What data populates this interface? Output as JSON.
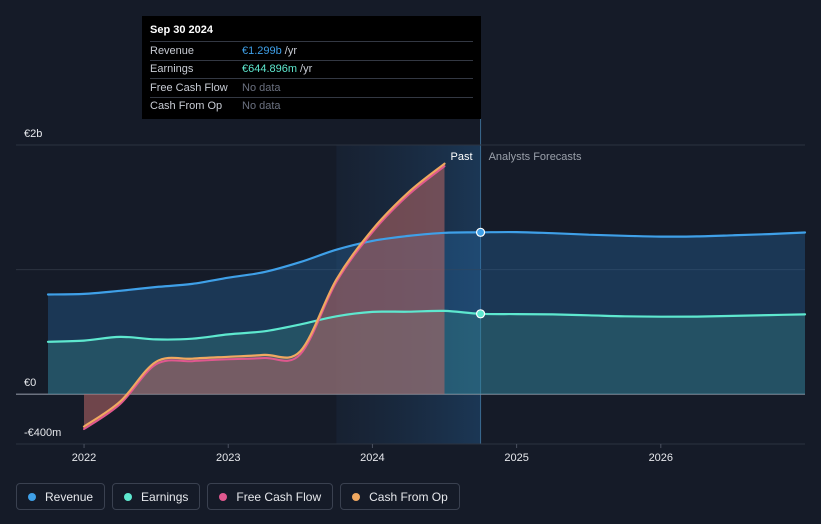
{
  "tooltip": {
    "date": "Sep 30 2024",
    "rows": [
      {
        "label": "Revenue",
        "value": "€1.299b",
        "unit": "/yr",
        "color": "#3fa0e8"
      },
      {
        "label": "Earnings",
        "value": "€644.896m",
        "unit": "/yr",
        "color": "#5ee8cf"
      },
      {
        "label": "Free Cash Flow",
        "value": "No data",
        "unit": "",
        "color": "#6b7180"
      },
      {
        "label": "Cash From Op",
        "value": "No data",
        "unit": "",
        "color": "#6b7180"
      }
    ]
  },
  "chart_data": {
    "type": "area",
    "y_unit": "EUR",
    "ylim": [
      -400000000,
      2000000000
    ],
    "y_tick_labels": [
      {
        "value": 2000000000,
        "label": "€2b"
      },
      {
        "value": 0,
        "label": "€0"
      },
      {
        "value": -400000000,
        "label": "-€400m"
      }
    ],
    "xlim": [
      2021.75,
      2027.0
    ],
    "x_tick_labels": [
      {
        "value": 2022,
        "label": "2022"
      },
      {
        "value": 2023,
        "label": "2023"
      },
      {
        "value": 2024,
        "label": "2024"
      },
      {
        "value": 2025,
        "label": "2025"
      },
      {
        "value": 2026,
        "label": "2026"
      }
    ],
    "divider_x": 2024.75,
    "highlight_x": [
      2023.75,
      2024.75
    ],
    "past_label": "Past",
    "forecast_label": "Analysts Forecasts",
    "grid": true,
    "legend_position": "bottom-left",
    "series": [
      {
        "name": "Revenue",
        "color": "#3fa0e8",
        "points": [
          [
            2021.75,
            800000000
          ],
          [
            2022.0,
            805000000
          ],
          [
            2022.25,
            830000000
          ],
          [
            2022.5,
            860000000
          ],
          [
            2022.75,
            885000000
          ],
          [
            2023.0,
            935000000
          ],
          [
            2023.25,
            980000000
          ],
          [
            2023.5,
            1060000000
          ],
          [
            2023.75,
            1160000000
          ],
          [
            2024.0,
            1230000000
          ],
          [
            2024.25,
            1270000000
          ],
          [
            2024.5,
            1295000000
          ],
          [
            2024.75,
            1299000000
          ],
          [
            2025.0,
            1301000000
          ],
          [
            2025.25,
            1292000000
          ],
          [
            2025.5,
            1280000000
          ],
          [
            2025.75,
            1271000000
          ],
          [
            2026.0,
            1265000000
          ],
          [
            2026.25,
            1266000000
          ],
          [
            2026.5,
            1275000000
          ],
          [
            2026.75,
            1285000000
          ],
          [
            2027.0,
            1298000000
          ]
        ],
        "past_until": 2024.75,
        "marker_x": 2024.75
      },
      {
        "name": "Earnings",
        "color": "#5ee8cf",
        "points": [
          [
            2021.75,
            420000000
          ],
          [
            2022.0,
            430000000
          ],
          [
            2022.25,
            460000000
          ],
          [
            2022.5,
            440000000
          ],
          [
            2022.75,
            445000000
          ],
          [
            2023.0,
            480000000
          ],
          [
            2023.25,
            505000000
          ],
          [
            2023.5,
            560000000
          ],
          [
            2023.75,
            625000000
          ],
          [
            2024.0,
            660000000
          ],
          [
            2024.25,
            662000000
          ],
          [
            2024.5,
            668000000
          ],
          [
            2024.75,
            645000000
          ],
          [
            2025.0,
            643000000
          ],
          [
            2025.25,
            640000000
          ],
          [
            2025.5,
            633000000
          ],
          [
            2025.75,
            625000000
          ],
          [
            2026.0,
            622000000
          ],
          [
            2026.25,
            623000000
          ],
          [
            2026.5,
            628000000
          ],
          [
            2026.75,
            635000000
          ],
          [
            2027.0,
            640000000
          ]
        ],
        "past_until": 2024.75,
        "marker_x": 2024.75
      },
      {
        "name": "Free Cash Flow",
        "color": "#e0588f",
        "points": [
          [
            2022.0,
            -280000000
          ],
          [
            2022.25,
            -80000000
          ],
          [
            2022.5,
            240000000
          ],
          [
            2022.75,
            265000000
          ],
          [
            2023.0,
            280000000
          ],
          [
            2023.25,
            290000000
          ],
          [
            2023.5,
            320000000
          ],
          [
            2023.75,
            900000000
          ],
          [
            2024.0,
            1300000000
          ],
          [
            2024.25,
            1600000000
          ],
          [
            2024.5,
            1830000000
          ]
        ]
      },
      {
        "name": "Cash From Op",
        "color": "#f0a860",
        "points": [
          [
            2022.0,
            -260000000
          ],
          [
            2022.25,
            -60000000
          ],
          [
            2022.5,
            260000000
          ],
          [
            2022.75,
            285000000
          ],
          [
            2023.0,
            300000000
          ],
          [
            2023.25,
            315000000
          ],
          [
            2023.5,
            345000000
          ],
          [
            2023.75,
            920000000
          ],
          [
            2024.0,
            1320000000
          ],
          [
            2024.25,
            1620000000
          ],
          [
            2024.5,
            1850000000
          ]
        ]
      }
    ]
  },
  "legend": {
    "items": [
      {
        "label": "Revenue",
        "color": "#3fa0e8"
      },
      {
        "label": "Earnings",
        "color": "#5ee8cf"
      },
      {
        "label": "Free Cash Flow",
        "color": "#e0588f"
      },
      {
        "label": "Cash From Op",
        "color": "#f0a860"
      }
    ]
  }
}
